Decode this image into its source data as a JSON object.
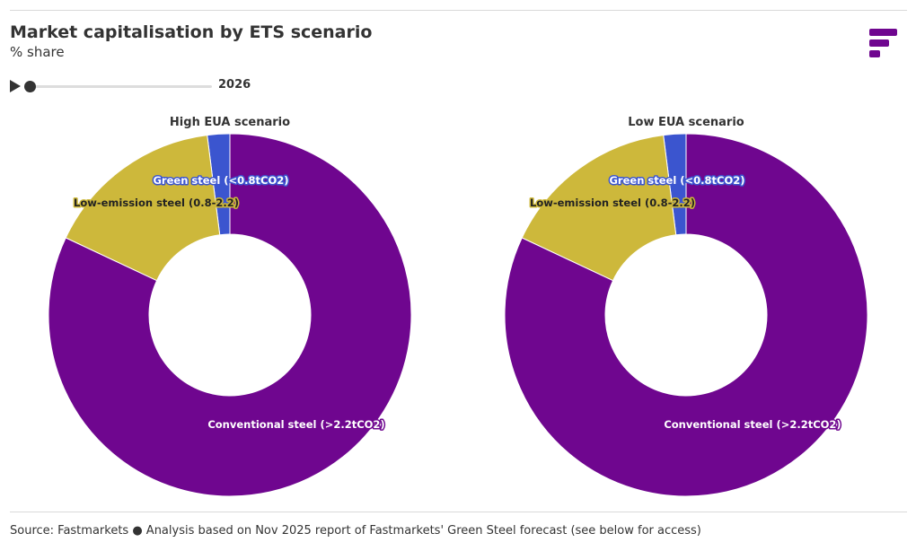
{
  "header": {
    "title": "Market capitalisation by ETS scenario",
    "subtitle": "% share"
  },
  "player": {
    "year": "2026",
    "play_icon": "play-icon"
  },
  "logo_icon": "fastmarkets-logo-icon",
  "footer": {
    "source": "Source: Fastmarkets ● Analysis based on Nov 2025 report of Fastmarkets' Green Steel forecast (see below for access)"
  },
  "colors": {
    "green": "#3b55cf",
    "low": "#cdb83b",
    "conventional": "#6f068f",
    "brand": "#6f068f"
  },
  "chart_data": [
    {
      "type": "pie",
      "title": "High EUA scenario",
      "categories": [
        "Green steel (<0.8tCO2)",
        "Low-emission steel (0.8-2.2)",
        "Conventional steel (>2.2tCO2)"
      ],
      "values": [
        2.0,
        16.0,
        82.0
      ],
      "unit": "%",
      "donut": true
    },
    {
      "type": "pie",
      "title": "Low EUA scenario",
      "categories": [
        "Green steel (<0.8tCO2)",
        "Low-emission steel (0.8-2.2)",
        "Conventional steel (>2.2tCO2)"
      ],
      "values": [
        2.0,
        16.0,
        82.0
      ],
      "unit": "%",
      "donut": true
    }
  ]
}
